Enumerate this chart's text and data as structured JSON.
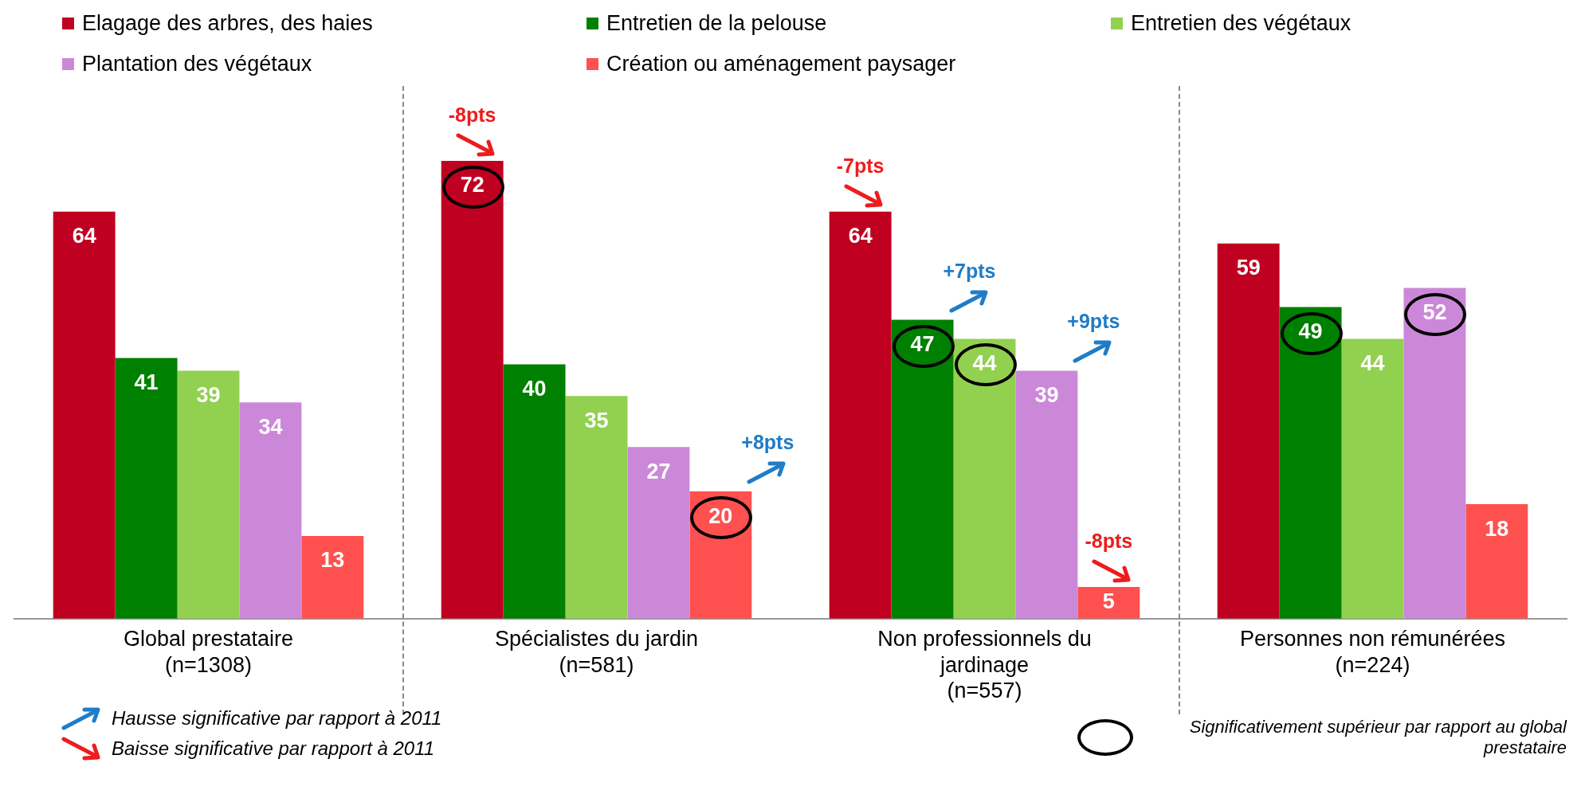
{
  "chart_data": {
    "type": "bar",
    "categories": [
      "Global prestataire\n(n=1308)",
      "Spécialistes du jardin\n(n=581)",
      "Non professionnels du\njardinage\n(n=557)",
      "Personnes non rémunérées\n(n=224)"
    ],
    "series": [
      {
        "name": "Elagage des arbres, des haies",
        "color": "#c00020",
        "values": [
          64,
          72,
          64,
          59
        ]
      },
      {
        "name": "Entretien de la pelouse",
        "color": "#008000",
        "values": [
          41,
          40,
          47,
          49
        ]
      },
      {
        "name": "Entretien des végétaux",
        "color": "#92d050",
        "values": [
          39,
          35,
          44,
          44
        ]
      },
      {
        "name": "Plantation des végétaux",
        "color": "#cc88d8",
        "values": [
          34,
          27,
          39,
          52
        ]
      },
      {
        "name": "Création ou aménagement paysager",
        "color": "#ff5050",
        "values": [
          13,
          20,
          5,
          18
        ]
      }
    ],
    "data_labels": true,
    "legend": "top left",
    "tick_labels": "x",
    "grid": false,
    "annotations": [
      "-8pts",
      "+8pts",
      "-7pts",
      "+7pts",
      "+9pts",
      "-8pts",
      "Hausse significative par rapport à 2011",
      "Baisse significative par rapport à 2011",
      "Significativement supérieur par rapport au global prestataire"
    ]
  }
}
